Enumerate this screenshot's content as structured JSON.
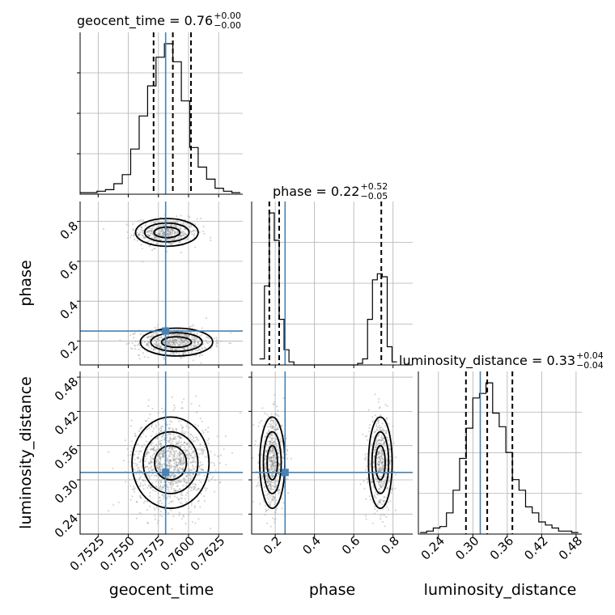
{
  "chart_data": {
    "type": "corner",
    "parameters": [
      "geocent_time",
      "phase",
      "luminosity_distance"
    ],
    "labels": {
      "geocent_time": "geocent_time",
      "phase": "phase",
      "luminosity_distance": "luminosity_distance"
    },
    "truths": {
      "geocent_time": 0.7581,
      "phase": 0.25,
      "luminosity_distance": 0.313
    },
    "ranges": {
      "geocent_time": [
        0.751,
        0.7645
      ],
      "phase": [
        0.08,
        0.9
      ],
      "luminosity_distance": [
        0.205,
        0.49
      ]
    },
    "ticks": {
      "geocent_time": [
        0.7525,
        0.755,
        0.7575,
        0.76,
        0.7625
      ],
      "phase": [
        0.2,
        0.4,
        0.6,
        0.8
      ],
      "luminosity_distance": [
        0.24,
        0.3,
        0.36,
        0.42,
        0.48
      ]
    },
    "tick_labels": {
      "geocent_time": [
        "0.7525",
        "0.7550",
        "0.7575",
        "0.7600",
        "0.7625"
      ],
      "phase": [
        "0.2",
        "0.4",
        "0.6",
        "0.8"
      ],
      "luminosity_distance": [
        "0.24",
        "0.30",
        "0.36",
        "0.42",
        "0.48"
      ]
    },
    "titles": [
      {
        "param": "geocent_time",
        "prefix": "geocent_time = 0.76",
        "plus": "+0.00",
        "minus": "−0.00"
      },
      {
        "param": "phase",
        "prefix": "phase = 0.22",
        "plus": "+0.52",
        "minus": "−0.05"
      },
      {
        "param": "luminosity_distance",
        "prefix": "luminosity_distance = 0.33",
        "plus": "+0.04",
        "minus": "−0.04"
      }
    ],
    "quantiles": {
      "geocent_time": [
        0.7571,
        0.7587,
        0.7602
      ],
      "phase": [
        0.17,
        0.22,
        0.74
      ],
      "luminosity_distance": [
        0.288,
        0.325,
        0.369
      ]
    },
    "histograms": {
      "geocent_time": {
        "edges": [
          0.751,
          0.7517,
          0.7524,
          0.7531,
          0.7538,
          0.7545,
          0.7552,
          0.7559,
          0.7566,
          0.7573,
          0.758,
          0.7587,
          0.7594,
          0.7601,
          0.7608,
          0.7615,
          0.7622,
          0.7629,
          0.7636,
          0.7643
        ],
        "counts": [
          1,
          1,
          2,
          3,
          7,
          13,
          30,
          52,
          72,
          91,
          100,
          88,
          62,
          31,
          18,
          10,
          4,
          2,
          1
        ]
      },
      "phase": {
        "edges": [
          0.12,
          0.145,
          0.17,
          0.195,
          0.22,
          0.245,
          0.27,
          0.295,
          0.32,
          0.62,
          0.645,
          0.67,
          0.695,
          0.72,
          0.745,
          0.77,
          0.795,
          0.82
        ],
        "counts": [
          4,
          52,
          100,
          82,
          30,
          10,
          2,
          0,
          0,
          1,
          4,
          30,
          56,
          60,
          58,
          12,
          2
        ]
      },
      "luminosity_distance": {
        "edges": [
          0.208,
          0.2195,
          0.231,
          0.2425,
          0.254,
          0.2655,
          0.277,
          0.2885,
          0.3,
          0.3115,
          0.323,
          0.3345,
          0.346,
          0.3575,
          0.369,
          0.3805,
          0.392,
          0.4035,
          0.415,
          0.4265,
          0.438,
          0.4495,
          0.461,
          0.4725,
          0.484
        ],
        "counts": [
          1,
          2,
          4,
          5,
          14,
          29,
          50,
          70,
          90,
          93,
          100,
          80,
          71,
          54,
          36,
          29,
          18,
          14,
          8,
          6,
          4,
          2,
          2,
          1
        ]
      }
    },
    "clusters": {
      "phase_vs_geocent_time": [
        {
          "cx": 0.7582,
          "cy": 0.745,
          "sx": 0.0013,
          "sy": 0.035,
          "weight": 0.45
        },
        {
          "cx": 0.759,
          "cy": 0.195,
          "sx": 0.0015,
          "sy": 0.035,
          "weight": 0.55
        }
      ],
      "luminosity_distance_vs_geocent_time": [
        {
          "cx": 0.7585,
          "cy": 0.33,
          "sx": 0.0016,
          "sy": 0.04,
          "weight": 1.0
        }
      ],
      "luminosity_distance_vs_phase": [
        {
          "cx": 0.185,
          "cy": 0.33,
          "sx": 0.032,
          "sy": 0.04,
          "weight": 0.55
        },
        {
          "cx": 0.735,
          "cy": 0.33,
          "sx": 0.03,
          "sy": 0.04,
          "weight": 0.45
        }
      ]
    }
  }
}
